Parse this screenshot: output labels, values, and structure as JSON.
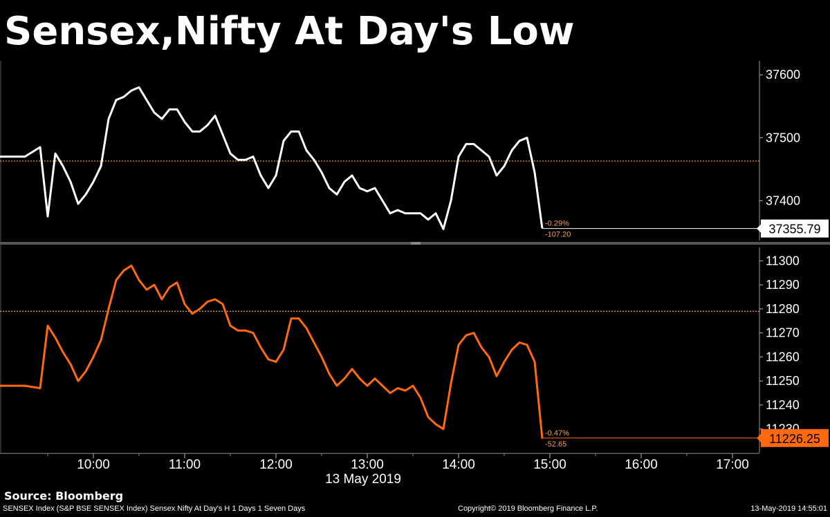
{
  "chart_data": [
    {
      "type": "line",
      "name": "sensex",
      "ylim": [
        37340,
        37620
      ],
      "yticks": [
        "37400",
        "37500",
        "37600"
      ],
      "reference_level": 37463,
      "last_value": "37355.79",
      "change_pct": "-0.29%",
      "change_abs": "-107.20",
      "color": "#ffffff",
      "times": [
        "09:15",
        "09:25",
        "09:30",
        "09:35",
        "09:40",
        "09:45",
        "09:50",
        "09:55",
        "10:00",
        "10:05",
        "10:10",
        "10:15",
        "10:20",
        "10:25",
        "10:30",
        "10:35",
        "10:40",
        "10:45",
        "10:50",
        "10:55",
        "11:00",
        "11:05",
        "11:10",
        "11:15",
        "11:20",
        "11:25",
        "11:30",
        "11:35",
        "11:40",
        "11:45",
        "11:50",
        "11:55",
        "12:00",
        "12:05",
        "12:10",
        "12:15",
        "12:20",
        "12:25",
        "12:30",
        "12:35",
        "12:40",
        "12:45",
        "12:50",
        "12:55",
        "13:00",
        "13:05",
        "13:10",
        "13:15",
        "13:20",
        "13:25",
        "13:30",
        "13:35",
        "13:40",
        "13:45",
        "13:50",
        "13:55",
        "14:00",
        "14:05",
        "14:10",
        "14:15",
        "14:20",
        "14:25",
        "14:30",
        "14:35",
        "14:40",
        "14:45",
        "14:50",
        "14:55"
      ],
      "values": [
        37470,
        37485,
        37375,
        37475,
        37455,
        37430,
        37395,
        37410,
        37430,
        37455,
        37530,
        37560,
        37565,
        37575,
        37580,
        37560,
        37540,
        37530,
        37545,
        37545,
        37525,
        37510,
        37510,
        37520,
        37535,
        37505,
        37475,
        37465,
        37465,
        37470,
        37440,
        37420,
        37440,
        37495,
        37510,
        37510,
        37480,
        37465,
        37445,
        37420,
        37410,
        37430,
        37440,
        37420,
        37415,
        37420,
        37400,
        37380,
        37385,
        37380,
        37380,
        37380,
        37370,
        37380,
        37355,
        37400,
        37470,
        37490,
        37490,
        37480,
        37470,
        37440,
        37455,
        37480,
        37495,
        37500,
        37445,
        37356
      ]
    },
    {
      "type": "line",
      "name": "nifty",
      "ylim": [
        11221,
        11305
      ],
      "yticks": [
        "11230",
        "11240",
        "11250",
        "11260",
        "11270",
        "11280",
        "11290",
        "11300"
      ],
      "reference_level": 11279,
      "last_value": "11226.25",
      "change_pct": "-0.47%",
      "change_abs": "-52.65",
      "color": "#ff6a10",
      "times": [
        "09:15",
        "09:25",
        "09:30",
        "09:35",
        "09:40",
        "09:45",
        "09:50",
        "09:55",
        "10:00",
        "10:05",
        "10:10",
        "10:15",
        "10:20",
        "10:25",
        "10:30",
        "10:35",
        "10:40",
        "10:45",
        "10:50",
        "10:55",
        "11:00",
        "11:05",
        "11:10",
        "11:15",
        "11:20",
        "11:25",
        "11:30",
        "11:35",
        "11:40",
        "11:45",
        "11:50",
        "11:55",
        "12:00",
        "12:05",
        "12:10",
        "12:15",
        "12:20",
        "12:25",
        "12:30",
        "12:35",
        "12:40",
        "12:45",
        "12:50",
        "12:55",
        "13:00",
        "13:05",
        "13:10",
        "13:15",
        "13:20",
        "13:25",
        "13:30",
        "13:35",
        "13:40",
        "13:45",
        "13:50",
        "13:55",
        "14:00",
        "14:05",
        "14:10",
        "14:15",
        "14:20",
        "14:25",
        "14:30",
        "14:35",
        "14:40",
        "14:45",
        "14:50",
        "14:55"
      ],
      "values": [
        11248,
        11247,
        11273,
        11268,
        11262,
        11257,
        11250,
        11254,
        11260,
        11267,
        11280,
        11292,
        11296,
        11298,
        11292,
        11288,
        11290,
        11284,
        11289,
        11291,
        11282,
        11278,
        11280,
        11283,
        11284,
        11282,
        11273,
        11271,
        11271,
        11270,
        11264,
        11259,
        11258,
        11263,
        11276,
        11276,
        11272,
        11266,
        11260,
        11253,
        11248,
        11251,
        11255,
        11251,
        11248,
        11251,
        11248,
        11245,
        11247,
        11246,
        11248,
        11243,
        11235,
        11232,
        11230,
        11249,
        11265,
        11269,
        11270,
        11264,
        11260,
        11252,
        11258,
        11263,
        11266,
        11265,
        11258,
        11226
      ]
    }
  ],
  "chart": {
    "title": "Sensex,Nifty At Day's Low",
    "x_axis": {
      "date_label": "13 May 2019",
      "ticks": [
        "10:00",
        "11:00",
        "12:00",
        "13:00",
        "14:00",
        "15:00",
        "16:00",
        "17:00"
      ]
    }
  },
  "footer": {
    "source": "Source: Bloomberg",
    "left": "SENSEX Index (S&P BSE SENSEX Index) Sensex Nifty At Day's H 1 Days 1 Seven Days",
    "copyright": "Copyright© 2019 Bloomberg Finance L.P.",
    "timestamp": "13-May-2019 14:55:01"
  },
  "colors": {
    "background": "#000000",
    "sensex_line": "#ffffff",
    "nifty_line": "#ff6a10",
    "reference_line": "#f0a030",
    "divider": "#555555"
  }
}
